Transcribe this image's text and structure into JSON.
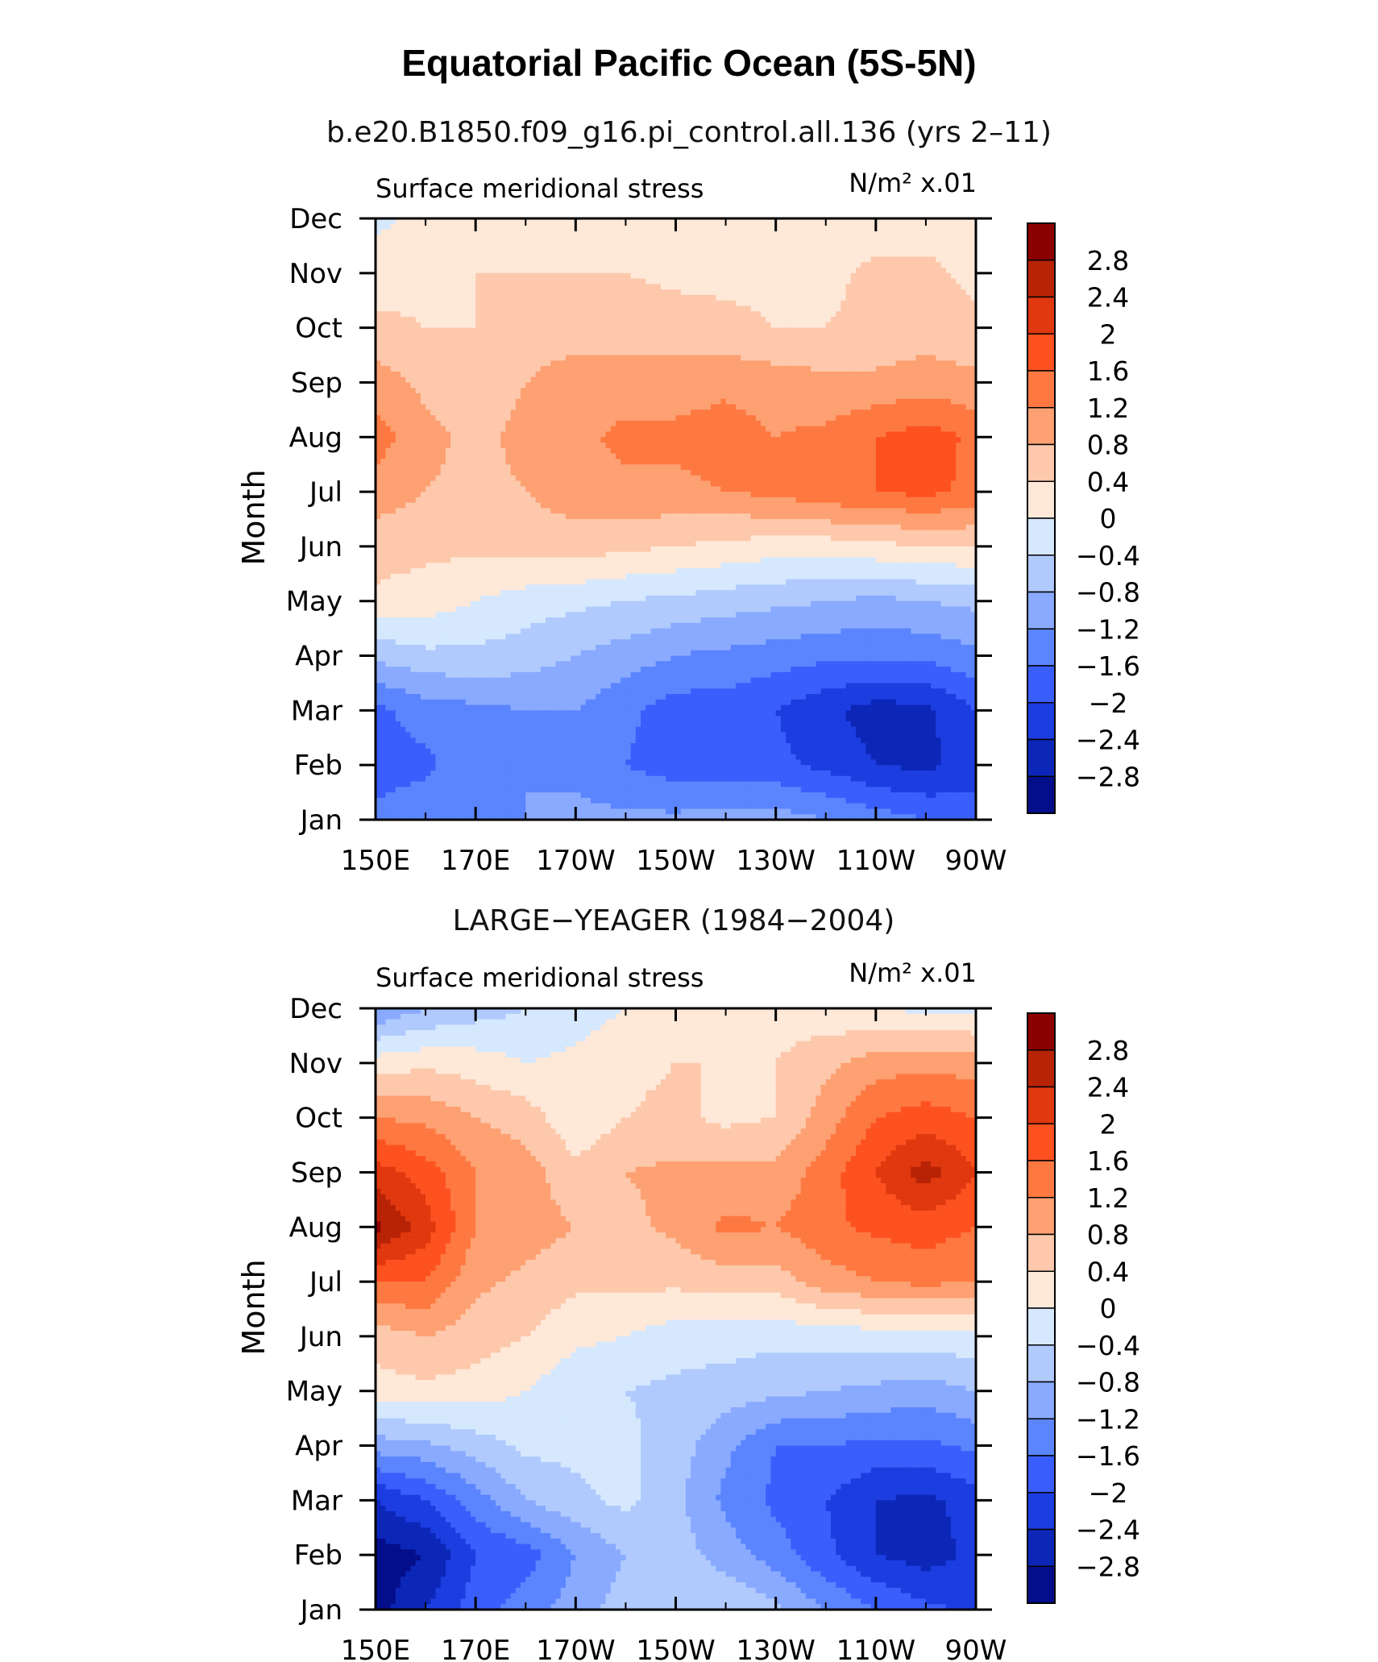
{
  "page": {
    "title": "Equatorial Pacific Ocean (5S-5N)"
  },
  "chart_data": [
    {
      "type": "heatmap",
      "plot_title": "b.e20.B1850.f09_g16.pi_control.all.136 (yrs 2–11)",
      "left_label": "Surface meridional stress",
      "right_label": "N/m² x.01",
      "ylabel": "Month",
      "xlabel": "",
      "x_tick_labels": [
        "150E",
        "170E",
        "170W",
        "150W",
        "130W",
        "110W",
        "90W"
      ],
      "x_longitudes": [
        150,
        170,
        190,
        210,
        230,
        250,
        270
      ],
      "xlim": [
        150,
        270
      ],
      "y_tick_labels": [
        "Jan",
        "Feb",
        "Mar",
        "Apr",
        "May",
        "Jun",
        "Jul",
        "Aug",
        "Sep",
        "Oct",
        "Nov",
        "Dec"
      ],
      "ylim": [
        1,
        12
      ],
      "colorbar_ticks": [
        "2.8",
        "2.4",
        "2",
        "1.6",
        "1.2",
        "0.8",
        "0.4",
        "0",
        "−0.4",
        "−0.8",
        "−1.2",
        "−1.6",
        "−2",
        "−2.4",
        "−2.8"
      ],
      "x": [
        150,
        160,
        170,
        180,
        190,
        200,
        210,
        220,
        230,
        240,
        250,
        260,
        270
      ],
      "y": [
        1,
        2,
        3,
        4,
        5,
        6,
        7,
        8,
        9,
        10,
        11,
        12
      ],
      "z": [
        [
          -1.5,
          -1.3,
          -1.2,
          -1.2,
          -1.1,
          -1.1,
          -1.1,
          -1.0,
          -1.0,
          -1.2,
          -1.4,
          -1.6,
          -1.8
        ],
        [
          -1.8,
          -1.7,
          -1.3,
          -1.2,
          -1.3,
          -1.6,
          -1.8,
          -1.8,
          -1.9,
          -2.1,
          -2.4,
          -2.5,
          -2.2
        ],
        [
          -1.7,
          -1.4,
          -1.3,
          -1.2,
          -1.2,
          -1.5,
          -1.8,
          -1.8,
          -2.0,
          -2.3,
          -2.6,
          -2.5,
          -2.0
        ],
        [
          -0.7,
          -0.5,
          -0.5,
          -0.6,
          -0.8,
          -1.0,
          -1.2,
          -1.3,
          -1.4,
          -1.5,
          -1.5,
          -1.5,
          -1.3
        ],
        [
          0.3,
          0.2,
          0.0,
          -0.2,
          -0.3,
          -0.4,
          -0.5,
          -0.6,
          -0.7,
          -0.8,
          -0.9,
          -0.8,
          -0.7
        ],
        [
          0.6,
          0.5,
          0.5,
          0.6,
          0.6,
          0.5,
          0.4,
          0.3,
          0.2,
          0.2,
          0.3,
          0.4,
          0.4
        ],
        [
          1.0,
          0.8,
          0.7,
          0.8,
          1.0,
          1.1,
          1.1,
          1.2,
          1.3,
          1.5,
          1.6,
          1.7,
          1.5
        ],
        [
          1.4,
          0.9,
          0.7,
          0.9,
          1.1,
          1.3,
          1.3,
          1.4,
          1.2,
          1.3,
          1.6,
          1.8,
          1.5
        ],
        [
          1.0,
          0.7,
          0.6,
          0.8,
          1.0,
          1.0,
          1.0,
          1.1,
          1.0,
          0.9,
          0.9,
          1.0,
          0.9
        ],
        [
          0.5,
          0.4,
          0.4,
          0.6,
          0.6,
          0.6,
          0.6,
          0.5,
          0.4,
          0.4,
          0.5,
          0.6,
          0.5
        ],
        [
          0.2,
          0.3,
          0.4,
          0.4,
          0.4,
          0.4,
          0.3,
          0.3,
          0.3,
          0.3,
          0.5,
          0.5,
          0.3
        ],
        [
          -0.1,
          0.1,
          0.2,
          0.2,
          0.2,
          0.2,
          0.1,
          0.1,
          0.1,
          0.1,
          0.2,
          0.2,
          0.2
        ]
      ]
    },
    {
      "type": "heatmap",
      "plot_title": "LARGE−YEAGER (1984−2004)",
      "left_label": "Surface meridional stress",
      "right_label": "N/m² x.01",
      "ylabel": "Month",
      "xlabel": "",
      "x_tick_labels": [
        "150E",
        "170E",
        "170W",
        "150W",
        "130W",
        "110W",
        "90W"
      ],
      "x_longitudes": [
        150,
        170,
        190,
        210,
        230,
        250,
        270
      ],
      "xlim": [
        150,
        270
      ],
      "y_tick_labels": [
        "Jan",
        "Feb",
        "Mar",
        "Apr",
        "May",
        "Jun",
        "Jul",
        "Aug",
        "Sep",
        "Oct",
        "Nov",
        "Dec"
      ],
      "ylim": [
        1,
        12
      ],
      "colorbar_ticks": [
        "2.8",
        "2.4",
        "2",
        "1.6",
        "1.2",
        "0.8",
        "0.4",
        "0",
        "−0.4",
        "−0.8",
        "−1.2",
        "−1.6",
        "−2",
        "−2.4",
        "−2.8"
      ],
      "x": [
        150,
        160,
        170,
        180,
        190,
        200,
        210,
        220,
        230,
        240,
        250,
        260,
        270
      ],
      "y": [
        1,
        2,
        3,
        4,
        5,
        6,
        7,
        8,
        9,
        10,
        11,
        12
      ],
      "z": [
        [
          -3.0,
          -2.4,
          -1.8,
          -1.4,
          -1.0,
          -0.6,
          -0.4,
          -0.4,
          -0.7,
          -1.2,
          -1.6,
          -1.9,
          -2.1
        ],
        [
          -3.0,
          -2.8,
          -2.0,
          -1.8,
          -1.2,
          -0.8,
          -0.6,
          -1.0,
          -1.4,
          -1.9,
          -2.4,
          -2.6,
          -2.3
        ],
        [
          -2.4,
          -2.0,
          -1.4,
          -0.8,
          -0.5,
          -0.3,
          -0.7,
          -1.3,
          -1.7,
          -2.0,
          -2.4,
          -2.5,
          -2.2
        ],
        [
          -1.0,
          -0.9,
          -0.6,
          -0.3,
          -0.3,
          -0.3,
          -0.6,
          -1.1,
          -1.6,
          -1.6,
          -1.7,
          -1.7,
          -1.5
        ],
        [
          0.2,
          0.3,
          0.2,
          0.0,
          -0.3,
          -0.4,
          -0.5,
          -0.6,
          -0.7,
          -0.8,
          -0.9,
          -1.0,
          -0.8
        ],
        [
          0.6,
          0.8,
          0.6,
          0.4,
          0.1,
          0.0,
          -0.2,
          -0.2,
          -0.3,
          -0.2,
          -0.2,
          -0.2,
          -0.1
        ],
        [
          1.6,
          1.6,
          0.9,
          0.7,
          0.5,
          0.5,
          0.5,
          0.6,
          0.6,
          1.0,
          1.2,
          1.3,
          1.2
        ],
        [
          2.9,
          2.2,
          1.2,
          1.0,
          0.8,
          0.7,
          0.9,
          1.3,
          1.2,
          1.5,
          1.7,
          1.8,
          1.6
        ],
        [
          2.2,
          1.8,
          1.2,
          1.0,
          0.5,
          0.8,
          0.9,
          0.9,
          0.9,
          1.4,
          2.0,
          2.6,
          2.0
        ],
        [
          1.2,
          1.1,
          0.8,
          0.6,
          0.1,
          0.4,
          0.5,
          0.3,
          0.4,
          1.0,
          1.6,
          1.8,
          1.6
        ],
        [
          0.2,
          0.3,
          0.2,
          0.0,
          0.1,
          0.3,
          0.4,
          0.4,
          0.4,
          0.7,
          1.0,
          1.1,
          1.0
        ],
        [
          -1.2,
          -0.8,
          -0.6,
          -0.4,
          -0.2,
          0.0,
          0.2,
          0.3,
          0.2,
          0.1,
          0.0,
          -0.1,
          -0.1
        ]
      ]
    }
  ],
  "colors": {
    "levels_high_to_low": [
      "#8b0000",
      "#b82305",
      "#e0380f",
      "#fd5220",
      "#fd7941",
      "#fda072",
      "#fdc8ab",
      "#fee8d8",
      "#d5e8fe",
      "#b0cafe",
      "#89aafe",
      "#5b85fe",
      "#3a5efc",
      "#1c3de0",
      "#0c27b8",
      "#050e8a"
    ]
  }
}
